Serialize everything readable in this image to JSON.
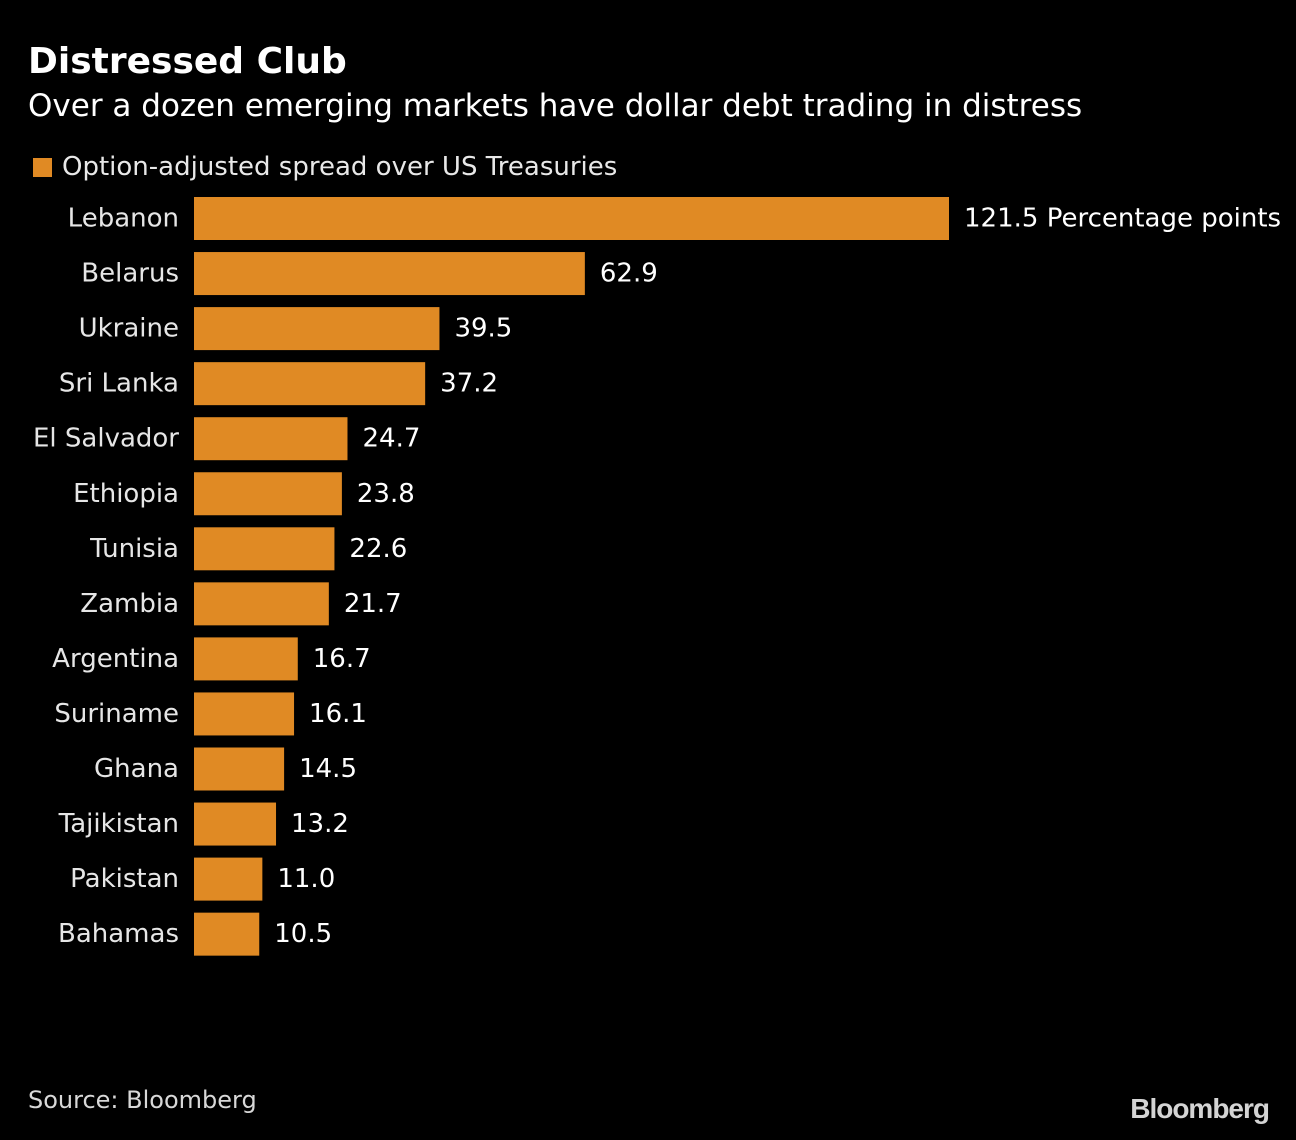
{
  "header": {
    "title": "Distressed Club",
    "subtitle": "Over a dozen emerging markets have dollar debt trading in distress"
  },
  "legend": {
    "label": "Option-adjusted spread over US Treasuries"
  },
  "colors": {
    "bar": "#E08A24",
    "background": "#000000",
    "text": "#FFFFFF"
  },
  "chart_data": {
    "type": "bar",
    "orientation": "horizontal",
    "title": "Distressed Club",
    "subtitle": "Over a dozen emerging markets have dollar debt trading in distress",
    "series": [
      {
        "name": "Option-adjusted spread over US Treasuries",
        "values": [
          121.5,
          62.9,
          39.5,
          37.2,
          24.7,
          23.8,
          22.6,
          21.7,
          16.7,
          16.1,
          14.5,
          13.2,
          11.0,
          10.5
        ]
      }
    ],
    "categories": [
      "Lebanon",
      "Belarus",
      "Ukraine",
      "Sri Lanka",
      "El Salvador",
      "Ethiopia",
      "Tunisia",
      "Zambia",
      "Argentina",
      "Suriname",
      "Ghana",
      "Tajikistan",
      "Pakistan",
      "Bahamas"
    ],
    "value_labels": [
      "121.5 Percentage points",
      "62.9",
      "39.5",
      "37.2",
      "24.7",
      "23.8",
      "22.6",
      "21.7",
      "16.7",
      "16.1",
      "14.5",
      "13.2",
      "11.0",
      "10.5"
    ],
    "unit": "Percentage points",
    "xlim": [
      0,
      121.5
    ],
    "grid": false,
    "legend_position": "top-left"
  },
  "footer": {
    "source": "Source: Bloomberg",
    "logo": "Bloomberg"
  }
}
